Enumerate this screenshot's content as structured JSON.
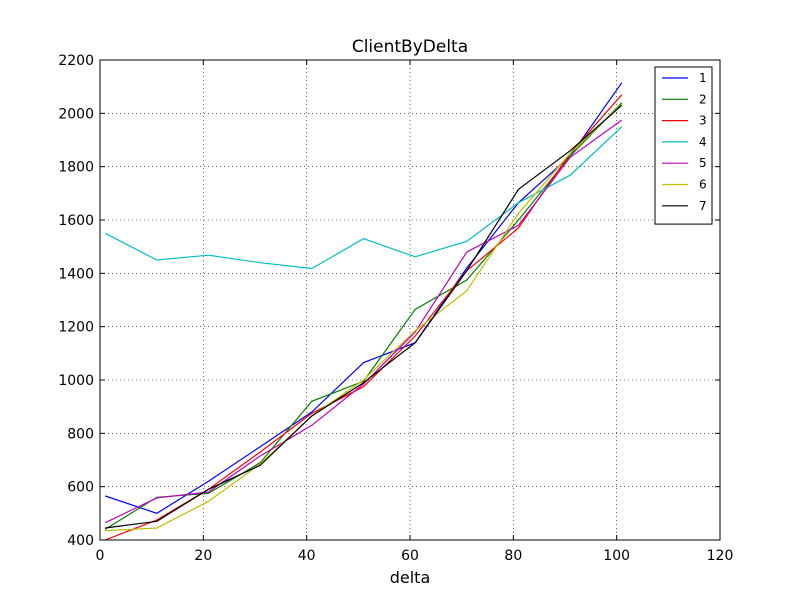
{
  "chart_data": {
    "type": "line",
    "title": "ClientByDelta",
    "xlabel": "delta",
    "ylabel": "",
    "xlim": [
      0,
      120
    ],
    "ylim": [
      400,
      2200
    ],
    "xticks": [
      0,
      20,
      40,
      60,
      80,
      100,
      120
    ],
    "yticks": [
      400,
      600,
      800,
      1000,
      1200,
      1400,
      1600,
      1800,
      2000,
      2200
    ],
    "grid": true,
    "legend_position": "top-right",
    "x": [
      1,
      11,
      21,
      31,
      41,
      51,
      61,
      71,
      81,
      91,
      101
    ],
    "series": [
      {
        "name": "1",
        "color": "#0000ff",
        "values": [
          565,
          500,
          620,
          750,
          880,
          1065,
          1140,
          1420,
          1665,
          1840,
          2115
        ]
      },
      {
        "name": "2",
        "color": "#008000",
        "values": [
          440,
          560,
          575,
          690,
          920,
          995,
          1265,
          1375,
          1600,
          1840,
          2040
        ]
      },
      {
        "name": "3",
        "color": "#ff0000",
        "values": [
          400,
          475,
          590,
          730,
          875,
          975,
          1165,
          1410,
          1570,
          1850,
          2070
        ]
      },
      {
        "name": "4",
        "color": "#00bfbf",
        "values": [
          1550,
          1450,
          1468,
          1440,
          1418,
          1530,
          1462,
          1520,
          1665,
          1768,
          1950
        ]
      },
      {
        "name": "5",
        "color": "#bf00bf",
        "values": [
          465,
          558,
          580,
          715,
          830,
          985,
          1180,
          1480,
          1580,
          1835,
          1975
        ]
      },
      {
        "name": "6",
        "color": "#bfbf00",
        "values": [
          435,
          445,
          545,
          685,
          865,
          1000,
          1185,
          1335,
          1625,
          1850,
          2035
        ]
      },
      {
        "name": "7",
        "color": "#000000",
        "values": [
          445,
          470,
          590,
          680,
          865,
          990,
          1140,
          1410,
          1715,
          1860,
          2030
        ]
      }
    ]
  }
}
